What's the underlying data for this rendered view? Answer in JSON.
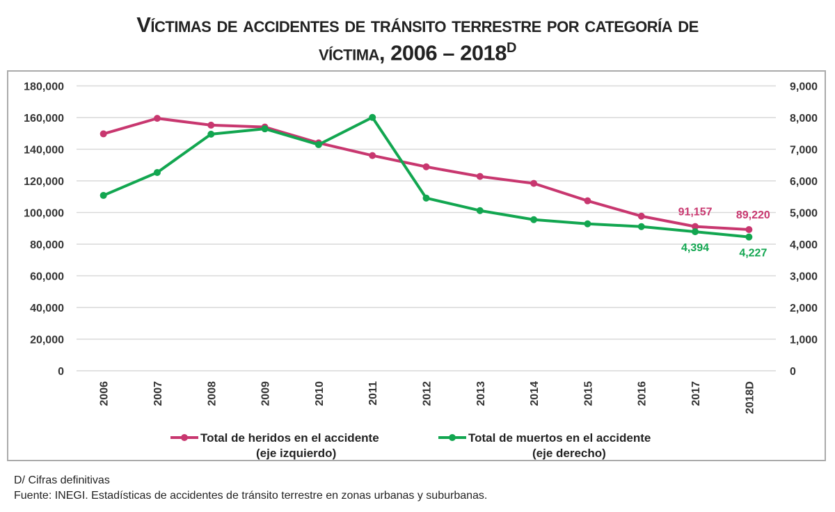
{
  "title_line1": "Víctimas de accidentes de tránsito terrestre por categoría de",
  "title_line2": "víctima, 2006 – 2018",
  "title_sup": "D",
  "chart_data": {
    "type": "line",
    "title": "Víctimas de accidentes de tránsito terrestre por categoría de víctima, 2006 – 2018D",
    "categories": [
      "2006",
      "2007",
      "2008",
      "2009",
      "2010",
      "2011",
      "2012",
      "2013",
      "2014",
      "2015",
      "2016",
      "2017",
      "2018D"
    ],
    "left_axis": {
      "ylim": [
        0,
        180000
      ],
      "ticks": [
        "0",
        "20,000",
        "40,000",
        "60,000",
        "80,000",
        "100,000",
        "120,000",
        "140,000",
        "160,000",
        "180,000"
      ]
    },
    "right_axis": {
      "ylim": [
        0,
        9000
      ],
      "ticks": [
        "0",
        "1,000",
        "2,000",
        "3,000",
        "4,000",
        "5,000",
        "6,000",
        "7,000",
        "8,000",
        "9,000"
      ]
    },
    "grid": true,
    "legend_position": "bottom",
    "series": [
      {
        "name": "Total de heridos en el accidente",
        "axis_note": "(eje izquierdo)",
        "axis": "left",
        "color": "#c8376f",
        "values": [
          149700,
          159500,
          155200,
          154000,
          144000,
          136000,
          128900,
          122800,
          118400,
          107400,
          97700,
          91157,
          89220
        ],
        "labels": {
          "11": "91,157",
          "12": "89,220"
        }
      },
      {
        "name": "Total de muertos en el accidente",
        "axis_note": "(eje derecho)",
        "axis": "right",
        "color": "#12a650",
        "values": [
          5540,
          6265,
          7475,
          7645,
          7145,
          8005,
          5457,
          5061,
          4775,
          4643,
          4555,
          4394,
          4227
        ],
        "labels": {
          "11": "4,394",
          "12": "4,227"
        }
      }
    ]
  },
  "footnote": "D/ Cifras definitivas",
  "source": "Fuente: INEGI. Estadísticas de accidentes de tránsito terrestre en zonas urbanas y suburbanas."
}
